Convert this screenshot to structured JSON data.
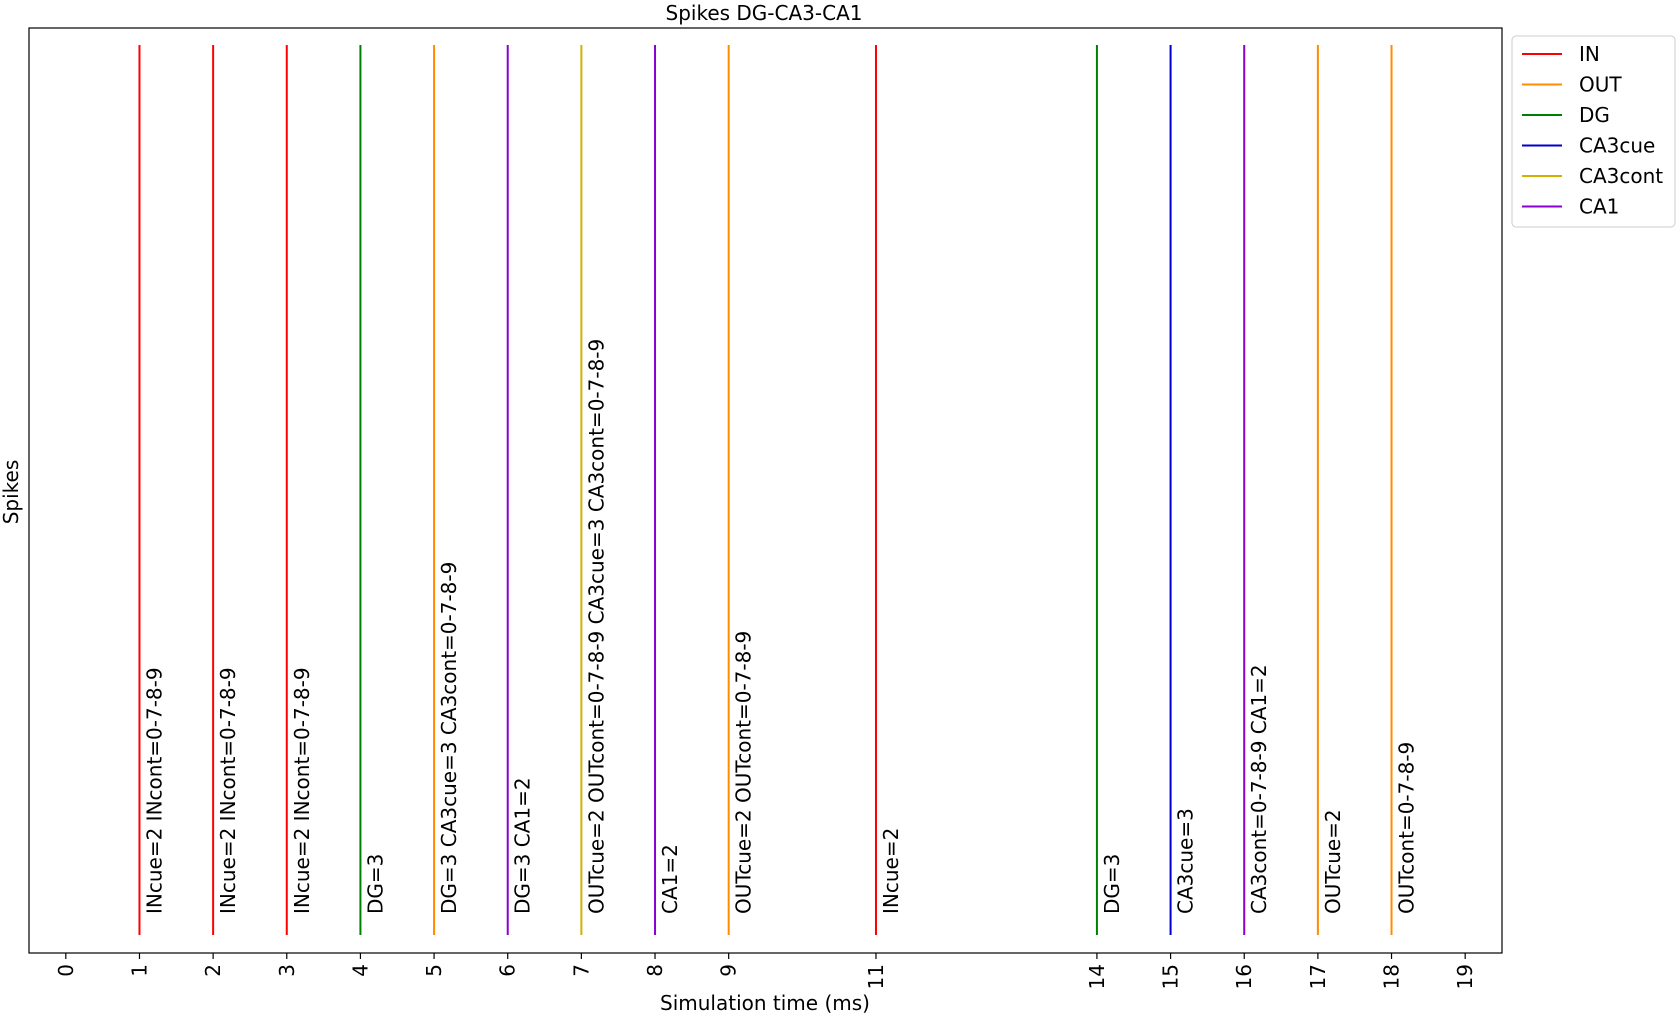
{
  "chart_data": {
    "type": "line",
    "title": "Spikes DG-CA3-CA1",
    "xlabel": "Simulation time (ms)",
    "ylabel": "Spikes",
    "xlim": [
      -0.5,
      19.5
    ],
    "grid": false,
    "legend_position": "top-right-outside",
    "xticks": [
      0,
      1,
      2,
      3,
      4,
      5,
      6,
      7,
      8,
      9,
      11,
      14,
      15,
      16,
      17,
      18,
      19
    ],
    "series": [
      {
        "name": "IN",
        "color": "#ff0000"
      },
      {
        "name": "OUT",
        "color": "#ff8c00"
      },
      {
        "name": "DG",
        "color": "#008000"
      },
      {
        "name": "CA3cue",
        "color": "#0000cd"
      },
      {
        "name": "CA3cont",
        "color": "#d4b000"
      },
      {
        "name": "CA1",
        "color": "#8a00d4"
      }
    ],
    "spikes": [
      {
        "x": 1,
        "series": "IN",
        "label": "INcue=2 INcont=0-7-8-9"
      },
      {
        "x": 2,
        "series": "IN",
        "label": "INcue=2 INcont=0-7-8-9"
      },
      {
        "x": 3,
        "series": "IN",
        "label": "INcue=2 INcont=0-7-8-9"
      },
      {
        "x": 4,
        "series": "DG",
        "label": "DG=3"
      },
      {
        "x": 5,
        "series": "OUT",
        "label": "DG=3 CA3cue=3 CA3cont=0-7-8-9"
      },
      {
        "x": 6,
        "series": "CA1",
        "label": "DG=3 CA1=2"
      },
      {
        "x": 7,
        "series": "CA3cont",
        "label": "OUTcue=2 OUTcont=0-7-8-9 CA3cue=3 CA3cont=0-7-8-9"
      },
      {
        "x": 8,
        "series": "CA1",
        "label": "CA1=2"
      },
      {
        "x": 9,
        "series": "OUT",
        "label": "OUTcue=2 OUTcont=0-7-8-9"
      },
      {
        "x": 11,
        "series": "IN",
        "label": "INcue=2"
      },
      {
        "x": 14,
        "series": "DG",
        "label": "DG=3"
      },
      {
        "x": 15,
        "series": "CA3cue",
        "label": "CA3cue=3"
      },
      {
        "x": 16,
        "series": "CA1",
        "label": "CA3cont=0-7-8-9 CA1=2"
      },
      {
        "x": 17,
        "series": "OUT",
        "label": "OUTcue=2"
      },
      {
        "x": 18,
        "series": "OUT",
        "label": "OUTcont=0-7-8-9"
      }
    ]
  }
}
